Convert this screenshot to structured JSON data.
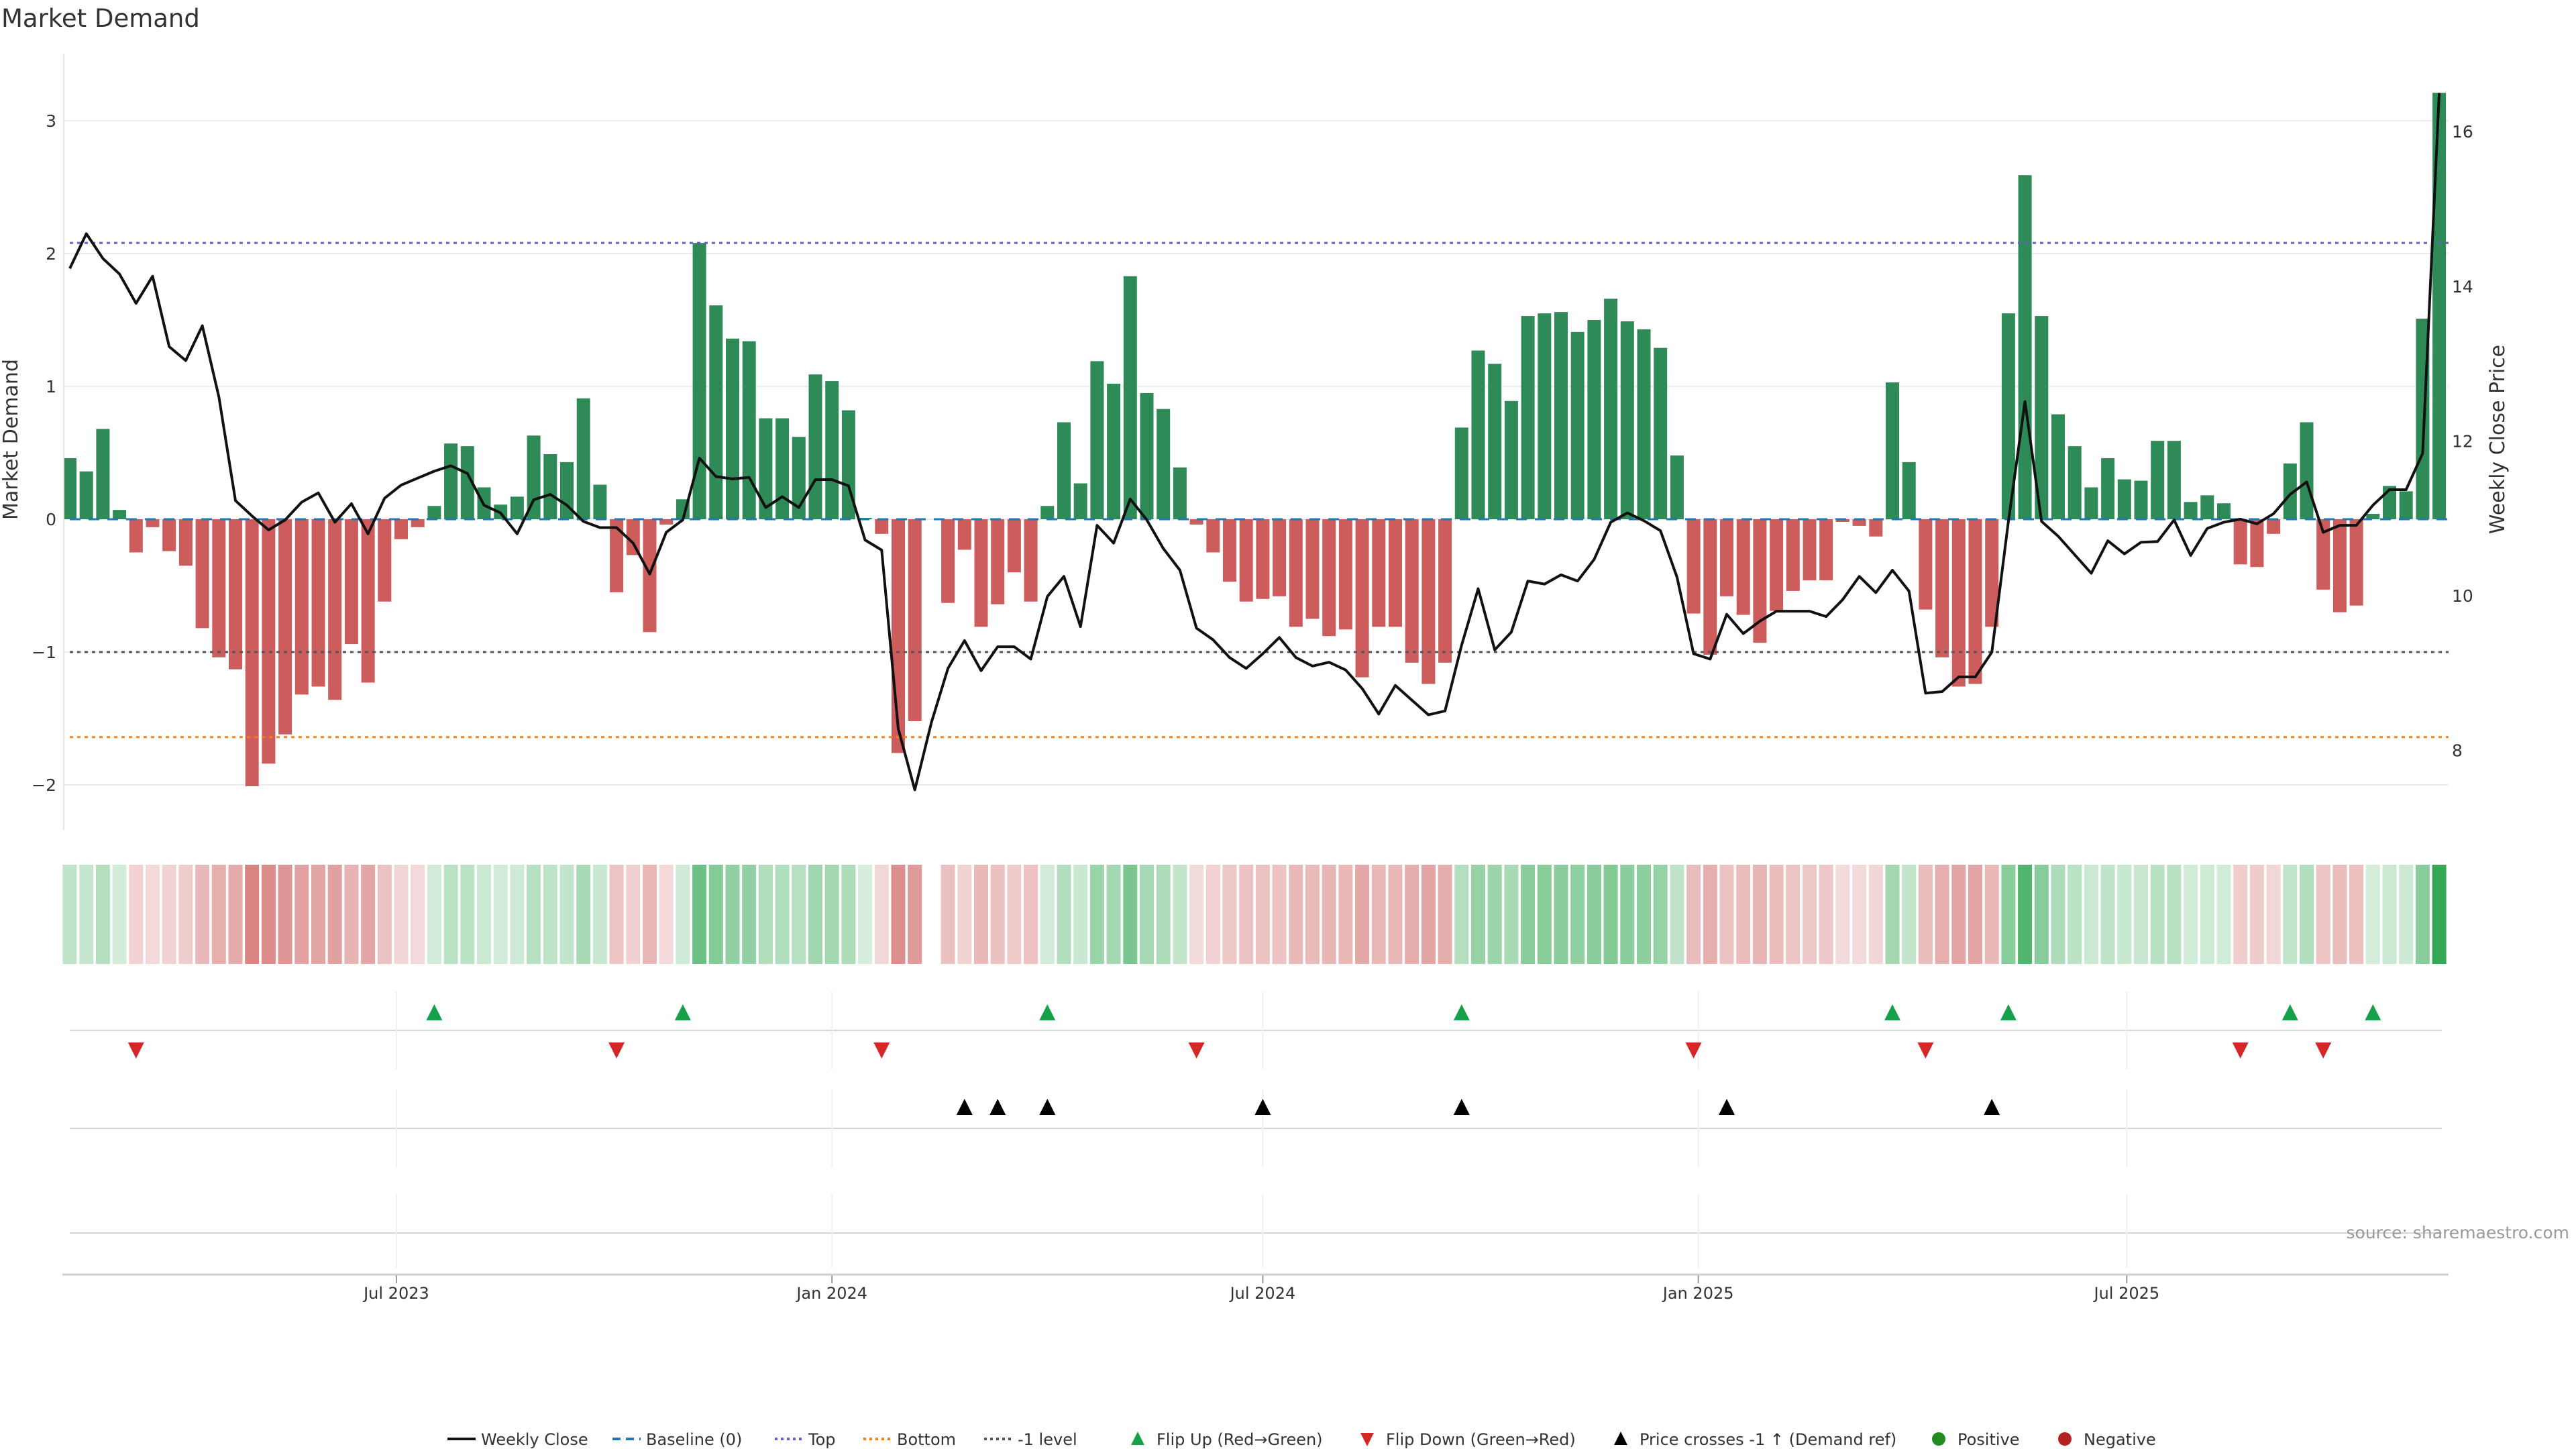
{
  "chart_data": {
    "type": "bar",
    "title": "Market Demand",
    "ylabel": "Market Demand",
    "y2label": "Weekly Close Price",
    "ylim": [
      -2.34,
      3.51
    ],
    "y2lim": [
      7.2,
      16.8
    ],
    "yticks": [
      "3",
      "2",
      "1",
      "0",
      "−1",
      "−2"
    ],
    "ytick_values": [
      3,
      2,
      1,
      0,
      -1,
      -2
    ],
    "y2ticks": [
      "16",
      "14",
      "12",
      "10",
      "8"
    ],
    "y2tick_values": [
      16,
      14,
      12,
      10,
      8
    ],
    "xticks": [
      {
        "label": "Jul 2023",
        "date": "2023-07-01"
      },
      {
        "label": "Jan 2024",
        "date": "2024-01-01"
      },
      {
        "label": "Jul 2024",
        "date": "2024-07-01"
      },
      {
        "label": "Jan 2025",
        "date": "2025-01-01"
      },
      {
        "label": "Jul 2025",
        "date": "2025-07-01"
      }
    ],
    "first_week": "2023-02-13",
    "frequency": "weekly",
    "levels": {
      "baseline": 0,
      "top": 2.08,
      "bottom": -1.64,
      "minus_one": -1
    },
    "demand": [
      0.46,
      0.36,
      0.68,
      0.07,
      -0.25,
      -0.06,
      -0.24,
      -0.35,
      -0.82,
      -1.04,
      -1.13,
      -2.01,
      -1.84,
      -1.62,
      -1.32,
      -1.26,
      -1.36,
      -0.94,
      -1.23,
      -0.62,
      -0.15,
      -0.06,
      0.1,
      0.57,
      0.55,
      0.24,
      0.11,
      0.17,
      0.63,
      0.49,
      0.43,
      0.91,
      0.26,
      -0.55,
      -0.27,
      -0.85,
      -0.04,
      0.15,
      2.08,
      1.61,
      1.36,
      1.34,
      0.76,
      0.76,
      0.62,
      1.09,
      1.04,
      0.82,
      0.01,
      -0.11,
      -1.76,
      -1.52,
      null,
      -0.63,
      -0.23,
      -0.81,
      -0.64,
      -0.4,
      -0.62,
      0.1,
      0.73,
      0.27,
      1.19,
      1.02,
      1.83,
      0.95,
      0.83,
      0.39,
      -0.04,
      -0.25,
      -0.47,
      -0.62,
      -0.6,
      -0.58,
      -0.81,
      -0.75,
      -0.88,
      -0.83,
      -1.19,
      -0.81,
      -0.81,
      -1.08,
      -1.24,
      -1.08,
      0.69,
      1.27,
      1.17,
      0.89,
      1.53,
      1.55,
      1.56,
      1.41,
      1.5,
      1.66,
      1.49,
      1.43,
      1.29,
      0.48,
      -0.71,
      -1.02,
      -0.58,
      -0.72,
      -0.93,
      -0.69,
      -0.54,
      -0.46,
      -0.46,
      -0.02,
      -0.05,
      -0.13,
      1.03,
      0.43,
      -0.68,
      -1.04,
      -1.26,
      -1.24,
      -0.81,
      1.55,
      2.59,
      1.53,
      0.79,
      0.55,
      0.24,
      0.46,
      0.3,
      0.29,
      0.59,
      0.59,
      0.13,
      0.18,
      0.12,
      -0.34,
      -0.36,
      -0.11,
      0.42,
      0.73,
      -0.53,
      -0.7,
      -0.65,
      0.04,
      0.25,
      0.21,
      1.51,
      3.21
    ],
    "weekly_close": [
      14.23,
      14.68,
      14.36,
      14.16,
      13.78,
      14.13,
      13.22,
      13.04,
      13.49,
      12.57,
      11.23,
      11.03,
      10.85,
      10.98,
      11.21,
      11.33,
      10.95,
      11.19,
      10.8,
      11.26,
      11.43,
      11.52,
      11.61,
      11.68,
      11.58,
      11.17,
      11.07,
      10.8,
      11.24,
      11.31,
      11.17,
      10.96,
      10.88,
      10.88,
      10.68,
      10.28,
      10.82,
      10.98,
      11.78,
      11.54,
      11.51,
      11.53,
      11.14,
      11.28,
      11.14,
      11.5,
      11.5,
      11.42,
      10.72,
      10.59,
      8.28,
      7.49,
      8.36,
      9.06,
      9.42,
      9.03,
      9.34,
      9.34,
      9.18,
      9.99,
      10.25,
      9.6,
      10.91,
      10.68,
      11.25,
      10.98,
      10.61,
      10.33,
      9.58,
      9.43,
      9.2,
      9.06,
      9.25,
      9.46,
      9.2,
      9.09,
      9.14,
      9.04,
      8.8,
      8.47,
      8.84,
      8.65,
      8.46,
      8.51,
      9.36,
      10.09,
      9.3,
      9.53,
      10.19,
      10.15,
      10.27,
      10.19,
      10.47,
      10.95,
      11.07,
      10.97,
      10.84,
      10.24,
      9.25,
      9.18,
      9.76,
      9.51,
      9.67,
      9.8,
      9.8,
      9.8,
      9.73,
      9.95,
      10.25,
      10.04,
      10.33,
      10.06,
      8.74,
      8.76,
      8.95,
      8.95,
      9.27,
      10.96,
      12.51,
      10.96,
      10.77,
      10.53,
      10.29,
      10.71,
      10.54,
      10.69,
      10.7,
      10.98,
      10.52,
      10.87,
      10.95,
      10.99,
      10.93,
      11.06,
      11.31,
      11.47,
      10.82,
      10.91,
      10.91,
      11.17,
      11.37,
      11.37,
      11.84,
      16.5
    ],
    "flip_up": [
      "2023-07-17",
      "2023-10-30",
      "2024-04-01",
      "2024-09-23",
      "2025-03-24",
      "2025-05-12",
      "2025-09-08",
      "2025-10-13"
    ],
    "flip_down": [
      "2023-03-13",
      "2023-10-02",
      "2024-01-22",
      "2024-06-03",
      "2024-12-30",
      "2025-04-07",
      "2025-08-18",
      "2025-09-22"
    ],
    "price_crosses": [
      "2024-02-26",
      "2024-03-11",
      "2024-04-01",
      "2024-07-01",
      "2024-09-23",
      "2025-01-13",
      "2025-05-05"
    ],
    "legend": {
      "placement": "bottom",
      "items": [
        "Weekly Close",
        "Baseline (0)",
        "Top",
        "Bottom",
        "-1 level",
        "Flip Up (Red→Green)",
        "Flip Down (Green→Red)",
        "Price crosses -1 ↑ (Demand ref)",
        "Positive",
        "Negative"
      ]
    },
    "source": "source: sharemaestro.com",
    "colors": {
      "positive_bar": "#2e8b57",
      "negative_bar": "#cd5c5c",
      "line": "#111111",
      "baseline": "#1f77b4",
      "top": "#6a5acd",
      "bottom": "#ff7f0e",
      "minus_one": "#555555",
      "flip_up": "#16a04a",
      "flip_down": "#d62728",
      "cross": "#000000",
      "positive": "#228b22",
      "negative": "#b22222",
      "heat_pos": "#34a853",
      "heat_neg": "#c8504f"
    }
  }
}
